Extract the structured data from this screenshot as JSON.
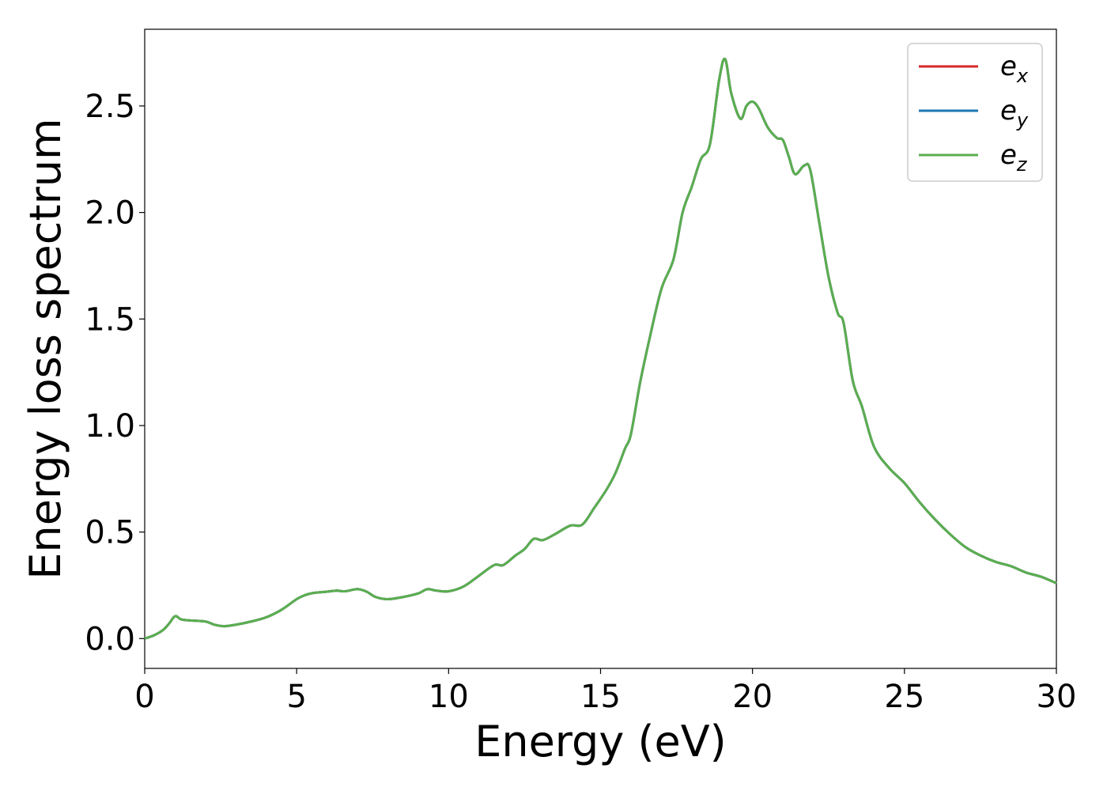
{
  "chart_data": {
    "type": "line",
    "xlabel": "Energy (eV)",
    "ylabel": "Energy loss spectrum",
    "xlim": [
      0,
      30
    ],
    "ylim": [
      -0.14,
      2.86
    ],
    "xticks": [
      0,
      5,
      10,
      15,
      20,
      25,
      30
    ],
    "xtick_labels": [
      "0",
      "5",
      "10",
      "15",
      "20",
      "25",
      "30"
    ],
    "yticks": [
      0.0,
      0.5,
      1.0,
      1.5,
      2.0,
      2.5
    ],
    "ytick_labels": [
      "0.0",
      "0.5",
      "1.0",
      "1.5",
      "2.0",
      "2.5"
    ],
    "grid": false,
    "legend_position": "top-right",
    "series": [
      {
        "name": "e",
        "subscript": "x",
        "color": "#d62728"
      },
      {
        "name": "e",
        "subscript": "y",
        "color": "#1f77b4"
      },
      {
        "name": "e",
        "subscript": "z",
        "color": "#5aae4f"
      }
    ],
    "x": [
      0.0,
      0.3,
      0.6,
      0.8,
      1.0,
      1.2,
      1.5,
      2.0,
      2.3,
      2.6,
      3.0,
      3.5,
      4.0,
      4.5,
      5.0,
      5.3,
      5.6,
      6.0,
      6.3,
      6.6,
      7.0,
      7.3,
      7.6,
      8.0,
      8.5,
      9.0,
      9.3,
      9.6,
      10.0,
      10.5,
      11.0,
      11.5,
      11.8,
      12.2,
      12.5,
      12.8,
      13.1,
      13.5,
      14.0,
      14.4,
      14.8,
      15.2,
      15.5,
      15.8,
      16.0,
      16.3,
      16.6,
      17.0,
      17.4,
      17.7,
      18.0,
      18.3,
      18.6,
      18.9,
      19.1,
      19.3,
      19.6,
      19.8,
      20.0,
      20.2,
      20.5,
      20.8,
      21.0,
      21.2,
      21.4,
      21.7,
      21.9,
      22.2,
      22.5,
      22.8,
      23.0,
      23.3,
      23.6,
      24.0,
      24.5,
      25.0,
      25.5,
      26.0,
      26.5,
      27.0,
      27.5,
      28.0,
      28.5,
      29.0,
      29.5,
      30.0
    ],
    "values": [
      0.0,
      0.015,
      0.04,
      0.07,
      0.105,
      0.09,
      0.085,
      0.08,
      0.065,
      0.058,
      0.065,
      0.08,
      0.1,
      0.135,
      0.185,
      0.205,
      0.215,
      0.22,
      0.225,
      0.222,
      0.232,
      0.22,
      0.195,
      0.185,
      0.195,
      0.212,
      0.232,
      0.225,
      0.222,
      0.245,
      0.295,
      0.345,
      0.345,
      0.39,
      0.42,
      0.468,
      0.462,
      0.49,
      0.53,
      0.535,
      0.615,
      0.7,
      0.78,
      0.89,
      0.96,
      1.2,
      1.4,
      1.64,
      1.78,
      2.0,
      2.12,
      2.25,
      2.32,
      2.62,
      2.72,
      2.56,
      2.44,
      2.5,
      2.52,
      2.49,
      2.4,
      2.35,
      2.34,
      2.26,
      2.18,
      2.22,
      2.2,
      1.95,
      1.7,
      1.53,
      1.48,
      1.21,
      1.09,
      0.9,
      0.8,
      0.73,
      0.64,
      0.56,
      0.49,
      0.43,
      0.39,
      0.36,
      0.34,
      0.31,
      0.29,
      0.26
    ]
  }
}
